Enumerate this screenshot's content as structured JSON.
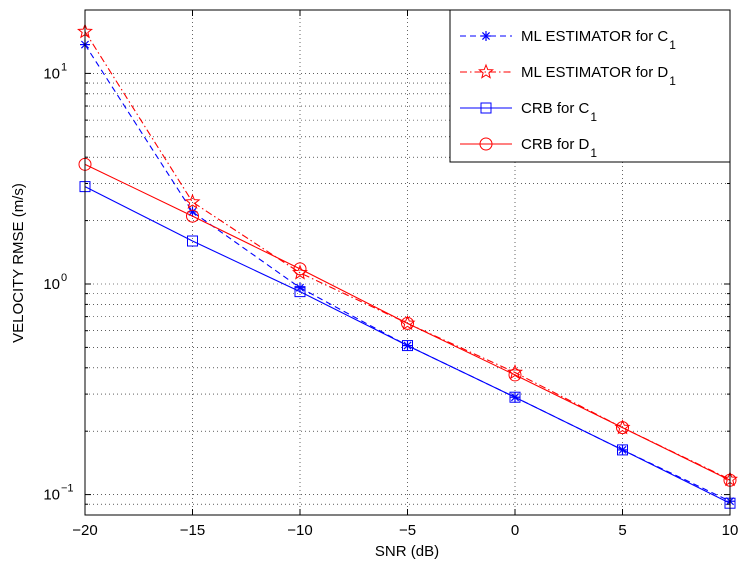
{
  "chart_data": {
    "type": "line",
    "xlabel": "SNR (dB)",
    "ylabel": "VELOCITY RMSE (m/s)",
    "x_scale": "linear",
    "y_scale": "log",
    "xlim": [
      -20,
      10
    ],
    "ylim": [
      0.08,
      20
    ],
    "grid": true,
    "legend_position": "top-right",
    "x_ticks": [
      {
        "value": -20,
        "label": "−20"
      },
      {
        "value": -15,
        "label": "−15"
      },
      {
        "value": -10,
        "label": "−10"
      },
      {
        "value": -5,
        "label": "−5"
      },
      {
        "value": 0,
        "label": "0"
      },
      {
        "value": 5,
        "label": "5"
      },
      {
        "value": 10,
        "label": "10"
      }
    ],
    "y_ticks": [
      {
        "value": 0.1,
        "base": "10",
        "exp": "−1"
      },
      {
        "value": 1,
        "base": "10",
        "exp": "0"
      },
      {
        "value": 10,
        "base": "10",
        "exp": "1"
      }
    ],
    "x": [
      -20,
      -15,
      -10,
      -5,
      0,
      5,
      10
    ],
    "series": [
      {
        "name": "ML ESTIMATOR for C",
        "name_sub": "1",
        "color": "#0000ff",
        "dash": "6,4",
        "marker": "asterisk",
        "values": [
          13.7,
          2.2,
          0.96,
          0.51,
          0.29,
          0.163,
          0.093
        ]
      },
      {
        "name": "ML ESTIMATOR for D",
        "name_sub": "1",
        "color": "#ff0000",
        "dash": "7,3,1.5,3",
        "marker": "star",
        "values": [
          15.8,
          2.45,
          1.13,
          0.65,
          0.38,
          0.208,
          0.118
        ]
      },
      {
        "name": "CRB for C",
        "name_sub": "1",
        "color": "#0000ff",
        "dash": "",
        "marker": "square",
        "values": [
          2.9,
          1.6,
          0.92,
          0.51,
          0.29,
          0.163,
          0.091
        ]
      },
      {
        "name": "CRB for D",
        "name_sub": "1",
        "color": "#ff0000",
        "dash": "",
        "marker": "circle",
        "values": [
          3.7,
          2.1,
          1.18,
          0.65,
          0.37,
          0.208,
          0.117
        ]
      }
    ]
  }
}
